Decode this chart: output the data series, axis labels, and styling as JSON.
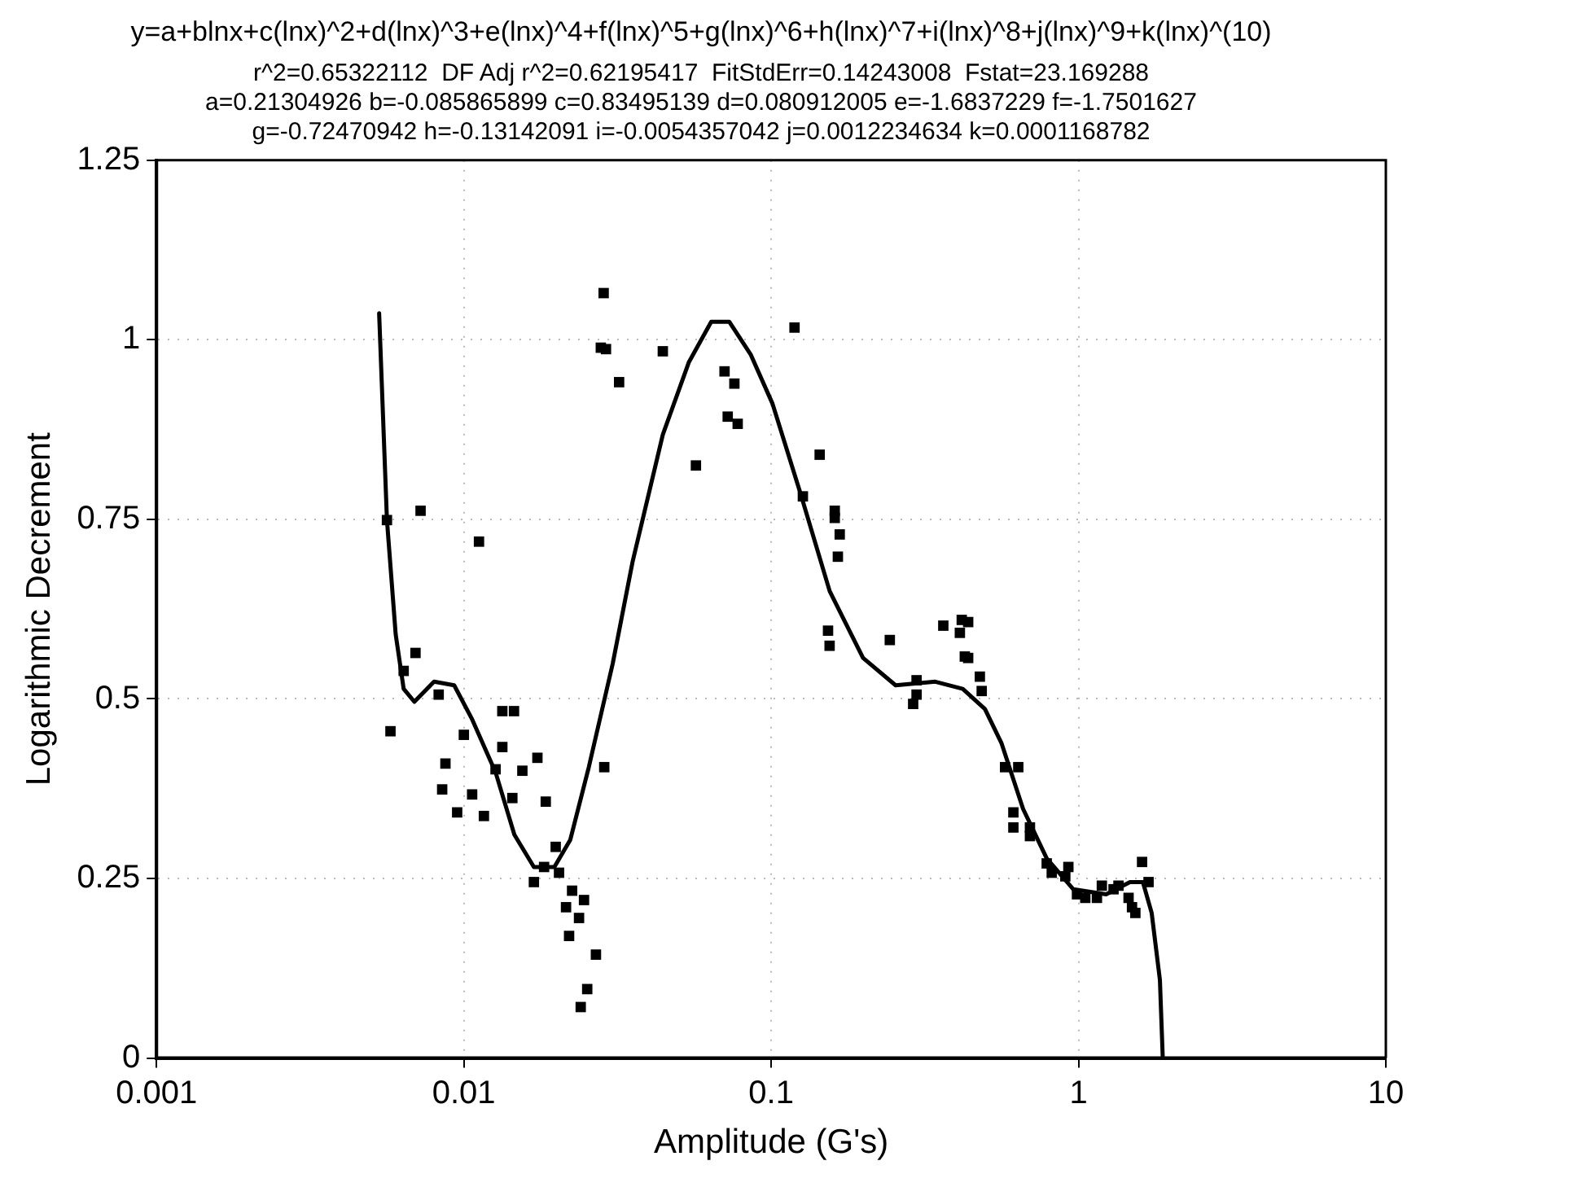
{
  "chart_data": {
    "type": "scatter",
    "title": "y=a+blnx+c(lnx)^2+d(lnx)^3+e(lnx)^4+f(lnx)^5+g(lnx)^6+h(lnx)^7+i(lnx)^8+j(lnx)^9+k(lnx)^(10)",
    "subtitle": "r^2=0.65322112  DF Adj r^2=0.62195417  FitStdErr=0.14243008  Fstat=23.169288\na=0.21304926 b=-0.085865899 c=0.83495139 d=0.080912005 e=-1.6837229 f=-1.7501627\ng=-0.72470942 h=-0.13142091 i=-0.0054357042 j=0.0012234634 k=0.0001168782",
    "xlabel": "Amplitude (G's)",
    "ylabel": "Logarithmic Decrement",
    "log": "x",
    "xlim": [
      0.001,
      10
    ],
    "xticks": [
      0.001,
      0.01,
      0.1,
      1,
      10
    ],
    "ylim": [
      0,
      1.25
    ],
    "yticks": [
      0,
      0.25,
      0.5,
      0.75,
      1,
      1.25
    ],
    "grid": true,
    "legend": false,
    "series": [
      {
        "marker": "square",
        "color": "#000000",
        "x": [
          0.00562,
          0.00723,
          0.0112,
          0.00696,
          0.00637,
          0.00828,
          0.00577,
          0.01,
          0.01334,
          0.01456,
          0.01334,
          0.00871,
          0.0085,
          0.01268,
          0.0155,
          0.01735,
          0.01064,
          0.01162,
          0.00951,
          0.01438,
          0.01847,
          0.02863,
          0.0199,
          0.0169,
          0.01824,
          0.0204,
          0.0215,
          0.0246,
          0.0237,
          0.0225,
          0.0269,
          0.0252,
          0.024,
          0.022,
          0.029,
          0.0279,
          0.0285,
          0.032,
          0.0444,
          0.1191,
          0.0705,
          0.0759,
          0.0722,
          0.0778,
          0.0569,
          0.1438,
          0.1268,
          0.161,
          0.161,
          0.1671,
          0.1648,
          0.1531,
          0.1549,
          0.2432,
          0.3631,
          0.4169,
          0.4111,
          0.4266,
          0.2972,
          0.2972,
          0.2897,
          0.4775,
          0.4842,
          0.4375,
          0.4375,
          0.5768,
          0.6368,
          0.6138,
          0.6138,
          0.695,
          0.695,
          0.788,
          0.8183,
          0.9268,
          0.9057,
          0.9886,
          1.052,
          1.191,
          1.148,
          1.3,
          1.349,
          1.493,
          1.531,
          1.61,
          1.69,
          1.455
        ],
        "values": [
          0.749,
          0.762,
          0.719,
          0.564,
          0.539,
          0.506,
          0.455,
          0.45,
          0.483,
          0.483,
          0.433,
          0.41,
          0.374,
          0.402,
          0.4,
          0.418,
          0.367,
          0.337,
          0.342,
          0.362,
          0.357,
          0.405,
          0.294,
          0.245,
          0.266,
          0.258,
          0.21,
          0.22,
          0.195,
          0.233,
          0.144,
          0.096,
          0.071,
          0.17,
          0.987,
          0.989,
          1.065,
          0.941,
          0.984,
          1.017,
          0.956,
          0.939,
          0.893,
          0.883,
          0.825,
          0.84,
          0.782,
          0.762,
          0.752,
          0.729,
          0.698,
          0.595,
          0.574,
          0.582,
          0.602,
          0.61,
          0.592,
          0.559,
          0.526,
          0.506,
          0.493,
          0.531,
          0.511,
          0.607,
          0.557,
          0.405,
          0.405,
          0.342,
          0.321,
          0.321,
          0.309,
          0.271,
          0.258,
          0.266,
          0.253,
          0.228,
          0.223,
          0.24,
          0.223,
          0.235,
          0.24,
          0.21,
          0.202,
          0.273,
          0.245,
          0.223
        ]
      },
      {
        "type": "line",
        "marker": "none",
        "color": "#000000",
        "x": [
          0.0053,
          0.00562,
          0.006,
          0.00637,
          0.0069,
          0.008,
          0.0093,
          0.0106,
          0.0127,
          0.0146,
          0.0169,
          0.0197,
          0.0222,
          0.0255,
          0.0305,
          0.0354,
          0.0444,
          0.054,
          0.0638,
          0.0731,
          0.0859,
          0.101,
          0.125,
          0.155,
          0.199,
          0.254,
          0.342,
          0.42,
          0.496,
          0.562,
          0.66,
          0.788,
          0.962,
          1.23,
          1.47,
          1.62,
          1.73,
          1.84,
          1.88
        ],
        "values": [
          1.037,
          0.749,
          0.59,
          0.514,
          0.496,
          0.524,
          0.519,
          0.473,
          0.397,
          0.311,
          0.266,
          0.266,
          0.304,
          0.405,
          0.549,
          0.691,
          0.868,
          0.969,
          1.025,
          1.025,
          0.979,
          0.911,
          0.784,
          0.65,
          0.557,
          0.519,
          0.524,
          0.514,
          0.486,
          0.438,
          0.347,
          0.278,
          0.235,
          0.228,
          0.245,
          0.245,
          0.202,
          0.109,
          0
        ]
      }
    ]
  }
}
